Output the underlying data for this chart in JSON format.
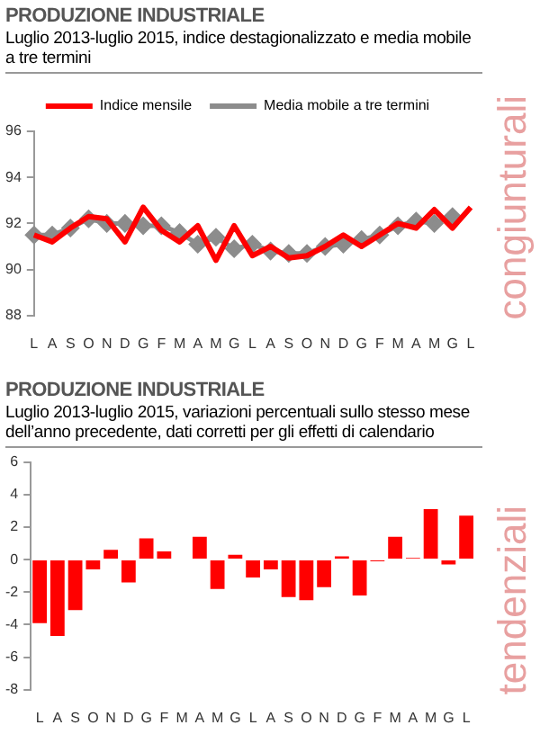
{
  "chart_data": [
    {
      "type": "line",
      "title": "PRODUZIONE INDUSTRIALE",
      "subtitle": "Luglio 2013-luglio 2015, indice destagionalizzato e media mobile a tre termini",
      "categories": [
        "L",
        "A",
        "S",
        "O",
        "N",
        "D",
        "G",
        "F",
        "M",
        "A",
        "M",
        "G",
        "L",
        "A",
        "S",
        "O",
        "N",
        "D",
        "G",
        "F",
        "M",
        "A",
        "M",
        "G",
        "L"
      ],
      "series": [
        {
          "name": "Indice mensile",
          "color": "#ff0000",
          "marker": "none",
          "values": [
            91.5,
            91.2,
            91.8,
            92.3,
            92.2,
            91.2,
            92.7,
            91.7,
            91.2,
            91.9,
            90.4,
            91.9,
            90.6,
            91.0,
            90.5,
            90.6,
            91.0,
            91.5,
            91.0,
            91.5,
            92.0,
            91.8,
            92.6,
            91.8,
            92.7
          ]
        },
        {
          "name": "Media mobile a tre termini",
          "color": "#8c8c8c",
          "marker": "diamond",
          "values": [
            91.5,
            91.5,
            91.8,
            92.2,
            92.0,
            92.0,
            91.9,
            91.9,
            91.6,
            91.1,
            91.4,
            90.9,
            91.1,
            90.8,
            90.7,
            90.7,
            91.0,
            91.1,
            91.3,
            91.5,
            91.9,
            92.1,
            92.0,
            92.3,
            null
          ]
        }
      ],
      "ylim": [
        88,
        96
      ],
      "yticks": [
        88,
        90,
        92,
        94,
        96
      ],
      "grid": false,
      "legend": "top",
      "annotations": [
        "congiunturali"
      ]
    },
    {
      "type": "bar",
      "title": "PRODUZIONE INDUSTRIALE",
      "subtitle": "Luglio 2013-luglio 2015, variazioni percentuali sullo stesso mese dell’anno precedente, dati corretti per gli effetti di calendario",
      "categories": [
        "L",
        "A",
        "S",
        "O",
        "N",
        "D",
        "G",
        "F",
        "M",
        "A",
        "M",
        "G",
        "L",
        "A",
        "S",
        "O",
        "N",
        "D",
        "G",
        "F",
        "M",
        "A",
        "M",
        "G",
        "L"
      ],
      "series": [
        {
          "color": "#ff0000",
          "values": [
            -3.9,
            -4.7,
            -3.1,
            -0.6,
            0.6,
            -1.4,
            1.3,
            0.5,
            0.0,
            1.4,
            -1.8,
            0.3,
            -1.1,
            -0.6,
            -2.3,
            -2.5,
            -1.7,
            0.2,
            -2.2,
            -0.1,
            1.4,
            0.1,
            3.1,
            -0.3,
            2.7
          ]
        }
      ],
      "ylim": [
        -8,
        6
      ],
      "yticks": [
        -8,
        -6,
        -4,
        -2,
        0,
        2,
        4,
        6
      ],
      "grid": false,
      "legend": false,
      "annotations": [
        "tendenziali"
      ]
    }
  ]
}
